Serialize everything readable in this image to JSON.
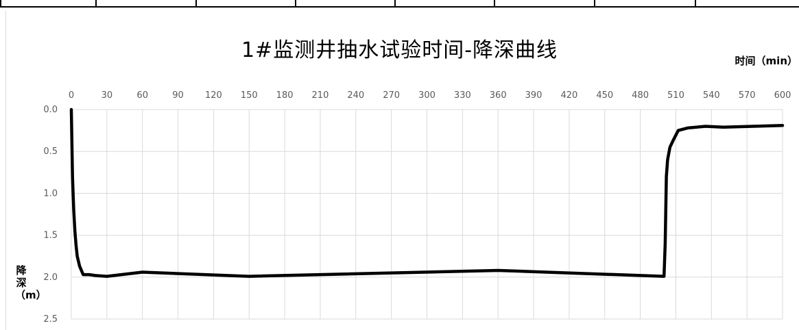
{
  "chart_data": {
    "type": "line",
    "title": "1#监测井抽水试验时间-降深曲线",
    "xlabel": "时间（min）",
    "ylabel": "降深（m）",
    "x_ticks": [
      "0",
      "30",
      "60",
      "90",
      "120",
      "150",
      "180",
      "210",
      "240",
      "270",
      "300",
      "330",
      "360",
      "390",
      "420",
      "450",
      "480",
      "510",
      "540",
      "570",
      "600"
    ],
    "y_ticks": [
      "0.0",
      "0.5",
      "1.0",
      "1.5",
      "2.0",
      "2.5"
    ],
    "xlim": [
      0,
      600
    ],
    "ylim": [
      0,
      2.5
    ],
    "y_axis_inverted": true,
    "x_axis_position": "top",
    "grid": true,
    "legend": "none",
    "series": [
      {
        "color": "#000000",
        "x": [
          0,
          1,
          2,
          3,
          4,
          5,
          7,
          10,
          15,
          20,
          30,
          60,
          150,
          360,
          500,
          501,
          502,
          503,
          505,
          508,
          512,
          520,
          535,
          550,
          600
        ],
        "y": [
          0.0,
          0.8,
          1.2,
          1.45,
          1.62,
          1.75,
          1.87,
          1.97,
          1.97,
          1.98,
          1.99,
          1.94,
          1.99,
          1.92,
          1.99,
          1.6,
          0.8,
          0.6,
          0.45,
          0.36,
          0.25,
          0.22,
          0.2,
          0.21,
          0.19
        ]
      }
    ]
  }
}
